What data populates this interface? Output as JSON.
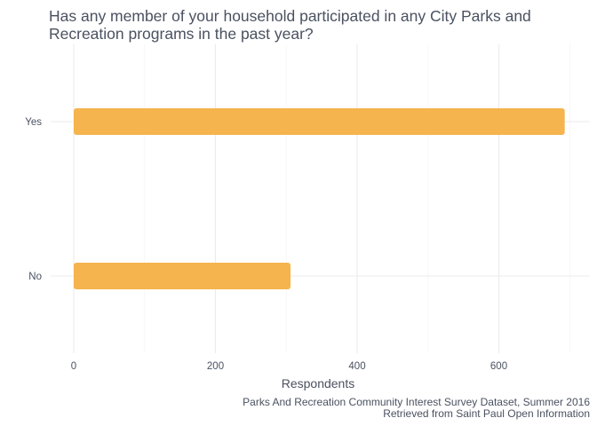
{
  "chart_data": {
    "type": "bar",
    "orientation": "horizontal",
    "title": "Has any member of your household participated in any City Parks and Recreation programs in the past year?",
    "categories": [
      "Yes",
      "No"
    ],
    "values": [
      693,
      306
    ],
    "xlabel": "Respondents",
    "ylabel": "",
    "xlim": [
      0,
      730
    ],
    "xticks": [
      0,
      200,
      400,
      600
    ],
    "grid": true,
    "bar_color": "#f5b44d",
    "caption": [
      "Parks And Recreation Community Interest Survey Dataset, Summer 2016",
      "Retrieved from Saint Paul Open Information"
    ]
  }
}
